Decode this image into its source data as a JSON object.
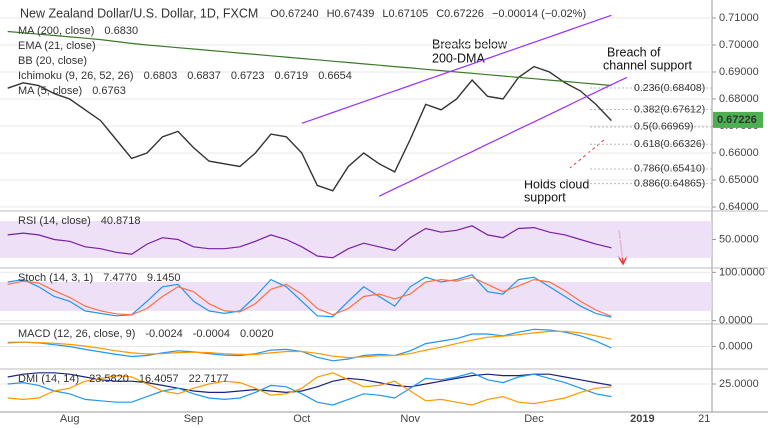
{
  "chart_data": [
    {
      "type": "line",
      "title": "New Zealand Dollar/U.S. Dollar, 1D, FXCM",
      "ohlc": [
        "O0.67240",
        "H0.67439",
        "L0.67105",
        "C0.67226",
        "−0.00014 (−0.02%)"
      ],
      "legend": [
        {
          "name": "MA (200, close)",
          "values": [
            "0.6830"
          ],
          "color": "#3b7a2a"
        },
        {
          "name": "EMA (21, close)",
          "values": [],
          "color": "#bbb"
        },
        {
          "name": "BB (20, close)",
          "values": [],
          "color": "#bbb"
        },
        {
          "name": "Ichimoku (9, 26, 52, 26)",
          "values": [
            "0.6803",
            "0.6837",
            "0.6723",
            "0.6719",
            "0.6654"
          ],
          "color": "#2962ff"
        },
        {
          "name": "MA (5, close)",
          "values": [
            "0.6763"
          ],
          "color": "#8b1a1a"
        }
      ],
      "annotations": [
        [
          "Breaks below",
          "200-DMA"
        ],
        [
          "Breach of",
          "channel support"
        ],
        [
          "Holds cloud",
          "support"
        ]
      ],
      "ylim": [
        0.6389,
        0.7148
      ],
      "yticks": [
        {
          "value": 0.64,
          "label": "0.64000"
        },
        {
          "value": 0.65,
          "label": "0.65000"
        },
        {
          "value": 0.66,
          "label": "0.66000"
        },
        {
          "value": 0.67,
          "label": "0.67000"
        },
        {
          "value": 0.68,
          "label": "0.68000"
        },
        {
          "value": 0.69,
          "label": "0.69000"
        },
        {
          "value": 0.7,
          "label": "0.70000"
        },
        {
          "value": 0.71,
          "label": "0.71000"
        }
      ],
      "fib": [
        {
          "value": 0.68408,
          "label": "0.236(0.68408)"
        },
        {
          "value": 0.67612,
          "label": "0.382(0.67612)"
        },
        {
          "value": 0.66969,
          "label": "0.5(0.66969)"
        },
        {
          "value": 0.66326,
          "label": "0.618(0.66326)"
        },
        {
          "value": 0.6541,
          "label": "0.786(0.65410)"
        },
        {
          "value": 0.64865,
          "label": "0.886(0.64865)"
        }
      ],
      "last": {
        "value": 0.67226,
        "label": "0.67226",
        "color": "#4caf50"
      },
      "series": [
        {
          "name": "Close",
          "color": "#333333",
          "values": [
            0.684,
            0.686,
            0.685,
            0.682,
            0.68,
            0.676,
            0.672,
            0.665,
            0.658,
            0.66,
            0.666,
            0.668,
            0.662,
            0.657,
            0.656,
            0.655,
            0.66,
            0.667,
            0.666,
            0.66,
            0.648,
            0.646,
            0.655,
            0.66,
            0.656,
            0.653,
            0.665,
            0.678,
            0.676,
            0.68,
            0.687,
            0.681,
            0.68,
            0.688,
            0.692,
            0.69,
            0.686,
            0.683,
            0.678,
            0.672,
            null,
            null,
            null,
            null,
            null,
            null
          ]
        },
        {
          "name": "MA (200, close)",
          "color": "#3b7a2a",
          "values": [
            0.705,
            0.7045,
            0.704,
            0.7035,
            0.703,
            0.7025,
            0.702,
            0.7013,
            0.7006,
            0.7,
            0.6995,
            0.699,
            0.6985,
            0.698,
            0.6975,
            0.697,
            0.6965,
            0.696,
            0.6955,
            0.695,
            0.6945,
            0.694,
            0.6935,
            0.693,
            0.6925,
            0.692,
            0.6915,
            0.691,
            0.6905,
            0.69,
            0.6895,
            0.689,
            0.6885,
            0.688,
            0.6875,
            0.687,
            0.6865,
            0.686,
            0.6855,
            0.685,
            null,
            null,
            null,
            null,
            null,
            null
          ]
        },
        {
          "name": "Upper channel",
          "color": "#9b30ff",
          "values": [
            null,
            null,
            null,
            null,
            null,
            null,
            null,
            null,
            null,
            null,
            null,
            null,
            null,
            null,
            null,
            null,
            null,
            null,
            null,
            0.671,
            0.673,
            0.675,
            0.677,
            0.679,
            0.681,
            0.683,
            0.685,
            0.687,
            0.689,
            0.691,
            0.693,
            0.695,
            0.697,
            0.699,
            0.701,
            0.703,
            0.705,
            0.707,
            0.709,
            0.711,
            null,
            null,
            null,
            null,
            null,
            null
          ]
        },
        {
          "name": "Lower channel",
          "color": "#9b30ff",
          "values": [
            null,
            null,
            null,
            null,
            null,
            null,
            null,
            null,
            null,
            null,
            null,
            null,
            null,
            null,
            null,
            null,
            null,
            null,
            null,
            null,
            null,
            null,
            null,
            null,
            0.644,
            0.6468,
            0.6495,
            0.6523,
            0.655,
            0.6578,
            0.6605,
            0.6633,
            0.666,
            0.6688,
            0.6715,
            0.6743,
            0.677,
            0.6798,
            0.6825,
            0.6853,
            0.688,
            null,
            null,
            null,
            null,
            null
          ]
        }
      ]
    },
    {
      "type": "line",
      "legend": [
        {
          "name": "RSI (14, close)",
          "values": [
            "40.8718"
          ],
          "color": "#7b1fa2"
        }
      ],
      "ylim": [
        20,
        80
      ],
      "yticks": [
        {
          "value": 50,
          "label": "50.0000"
        }
      ],
      "band": [
        30,
        70
      ],
      "series": [
        {
          "name": "RSI",
          "color": "#7b1fa2",
          "values": [
            55,
            57,
            55,
            50,
            48,
            42,
            40,
            36,
            34,
            45,
            52,
            50,
            42,
            40,
            40,
            42,
            48,
            55,
            50,
            42,
            32,
            30,
            40,
            46,
            42,
            38,
            52,
            62,
            58,
            60,
            65,
            55,
            52,
            62,
            63,
            58,
            55,
            50,
            45,
            41,
            null,
            null,
            null,
            null,
            null,
            null
          ]
        }
      ]
    },
    {
      "type": "line",
      "legend": [
        {
          "name": "Stoch (14, 3, 1)",
          "values": [
            "7.4770",
            "9.1450"
          ],
          "color": "#2196f3"
        }
      ],
      "ylim": [
        -5,
        107
      ],
      "yticks": [
        {
          "value": 0,
          "label": "0.0000"
        },
        {
          "value": 100,
          "label": "100.0000"
        }
      ],
      "band": [
        20,
        80
      ],
      "series": [
        {
          "name": "%K",
          "color": "#2196f3",
          "values": [
            80,
            85,
            70,
            50,
            40,
            20,
            15,
            10,
            12,
            40,
            70,
            75,
            40,
            20,
            15,
            20,
            50,
            85,
            70,
            40,
            10,
            8,
            40,
            70,
            50,
            30,
            70,
            90,
            80,
            85,
            95,
            60,
            55,
            85,
            90,
            70,
            50,
            30,
            15,
            7,
            null,
            null,
            null,
            null,
            null,
            null
          ]
        },
        {
          "name": "%D",
          "color": "#ff7043",
          "values": [
            75,
            82,
            78,
            62,
            48,
            30,
            20,
            14,
            12,
            25,
            50,
            70,
            60,
            35,
            20,
            18,
            35,
            65,
            75,
            55,
            25,
            12,
            25,
            50,
            55,
            45,
            55,
            80,
            85,
            82,
            90,
            75,
            60,
            72,
            85,
            80,
            62,
            40,
            22,
            9,
            null,
            null,
            null,
            null,
            null,
            null
          ]
        }
      ]
    },
    {
      "type": "line",
      "legend": [
        {
          "name": "MACD (12, 26, close, 9)",
          "values": [
            "-0.0024",
            "-0.0004",
            "0.0020"
          ],
          "color": "#2196f3"
        }
      ],
      "ylim": [
        -0.006,
        0.006
      ],
      "yticks": [
        {
          "value": 0,
          "label": "0.0000"
        }
      ],
      "series": [
        {
          "name": "MACD",
          "color": "#2196f3",
          "values": [
            0.001,
            0.0012,
            0.001,
            0.0005,
            0.0,
            -0.0008,
            -0.0015,
            -0.0022,
            -0.0028,
            -0.0025,
            -0.0018,
            -0.0012,
            -0.0015,
            -0.002,
            -0.0024,
            -0.0025,
            -0.002,
            -0.001,
            -0.0008,
            -0.0014,
            -0.003,
            -0.004,
            -0.0035,
            -0.0025,
            -0.0022,
            -0.0025,
            -0.0012,
            0.0008,
            0.0015,
            0.0022,
            0.0035,
            0.0035,
            0.003,
            0.004,
            0.0048,
            0.0046,
            0.004,
            0.003,
            0.0015,
            -0.0004,
            null,
            null,
            null,
            null,
            null,
            null
          ]
        },
        {
          "name": "Signal",
          "color": "#ff9800",
          "values": [
            0.0012,
            0.0012,
            0.0011,
            0.0009,
            0.0006,
            0.0001,
            -0.0005,
            -0.0012,
            -0.0018,
            -0.0021,
            -0.002,
            -0.0017,
            -0.0016,
            -0.0017,
            -0.002,
            -0.0022,
            -0.0022,
            -0.0018,
            -0.0014,
            -0.0014,
            -0.0019,
            -0.0027,
            -0.0031,
            -0.0029,
            -0.0026,
            -0.0025,
            -0.002,
            -0.001,
            -0.0002,
            0.0008,
            0.0018,
            0.0026,
            0.0029,
            0.0033,
            0.0038,
            0.0042,
            0.0042,
            0.0038,
            0.003,
            0.002,
            null,
            null,
            null,
            null,
            null,
            null
          ]
        }
      ]
    },
    {
      "type": "line",
      "legend": [
        {
          "name": "DMI (14, 14)",
          "values": [
            "23.5820",
            "16.4057",
            "22.7177"
          ],
          "color": "#1a237e"
        }
      ],
      "ylim": [
        5,
        35
      ],
      "yticks": [
        {
          "value": 25,
          "label": "25.0000"
        }
      ],
      "categories": [
        null,
        null,
        null,
        null,
        "Aug",
        null,
        null,
        null,
        null,
        null,
        null,
        null,
        "Sep",
        null,
        null,
        null,
        null,
        null,
        null,
        "Oct",
        null,
        null,
        null,
        null,
        null,
        null,
        "Nov",
        null,
        null,
        null,
        null,
        null,
        null,
        null,
        "Dec",
        null,
        null,
        null,
        null,
        null,
        null,
        "2019",
        null,
        null,
        null,
        "21"
      ],
      "series": [
        {
          "name": "ADX",
          "color": "#1a237e",
          "values": [
            30,
            32,
            33,
            33,
            32,
            30,
            28,
            27,
            27,
            26,
            24,
            22,
            20,
            19,
            19,
            20,
            21,
            20,
            19,
            20,
            23,
            27,
            29,
            28,
            26,
            24,
            23,
            25,
            27,
            29,
            31,
            32,
            31,
            31,
            32,
            32,
            30,
            28,
            26,
            24,
            null,
            null,
            null,
            null,
            null,
            null
          ]
        },
        {
          "name": "+DI",
          "color": "#2196f3",
          "values": [
            25,
            26,
            24,
            20,
            18,
            14,
            13,
            12,
            12,
            16,
            20,
            22,
            18,
            15,
            14,
            15,
            19,
            24,
            23,
            18,
            12,
            10,
            14,
            18,
            17,
            15,
            22,
            29,
            28,
            30,
            33,
            28,
            26,
            30,
            32,
            29,
            26,
            22,
            18,
            16,
            null,
            null,
            null,
            null,
            null,
            null
          ]
        },
        {
          "name": "-DI",
          "color": "#ff9800",
          "values": [
            15,
            14,
            15,
            20,
            22,
            27,
            29,
            31,
            30,
            25,
            20,
            18,
            22,
            25,
            27,
            26,
            22,
            17,
            18,
            22,
            30,
            33,
            28,
            23,
            24,
            27,
            20,
            13,
            14,
            12,
            10,
            14,
            16,
            12,
            11,
            13,
            15,
            19,
            22,
            23,
            null,
            null,
            null,
            null,
            null,
            null
          ]
        }
      ]
    }
  ]
}
